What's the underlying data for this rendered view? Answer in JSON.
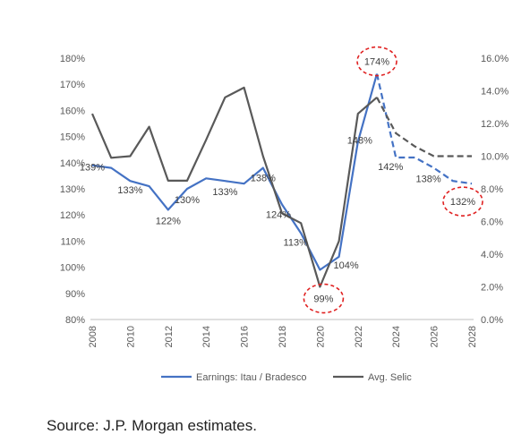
{
  "chart_data": {
    "type": "line",
    "title": "",
    "xlabel": "",
    "ylabel": "",
    "x": [
      2008,
      2009,
      2010,
      2011,
      2012,
      2013,
      2014,
      2015,
      2016,
      2017,
      2018,
      2019,
      2020,
      2021,
      2022,
      2023,
      2024,
      2025,
      2026,
      2027,
      2028
    ],
    "x_ticks": [
      "2008",
      "2010",
      "2012",
      "2014",
      "2016",
      "2018",
      "2020",
      "2022",
      "2024",
      "2026",
      "2028"
    ],
    "y_left": {
      "range": [
        80,
        180
      ],
      "ticks": [
        "80%",
        "90%",
        "100%",
        "110%",
        "120%",
        "130%",
        "140%",
        "150%",
        "160%",
        "170%",
        "180%"
      ]
    },
    "y_right": {
      "range": [
        0,
        16
      ],
      "ticks": [
        "0.0%",
        "2.0%",
        "4.0%",
        "6.0%",
        "8.0%",
        "10.0%",
        "12.0%",
        "14.0%",
        "16.0%"
      ]
    },
    "grid": false,
    "legend_position": "bottom",
    "forecast_from": 2023,
    "series": [
      {
        "name": "Earnings: Itau / Bradesco",
        "axis": "left",
        "color": "#4472c4",
        "values": [
          139,
          138,
          133,
          131,
          122,
          130,
          134,
          133,
          132,
          138,
          124,
          113,
          99,
          104,
          148,
          174,
          142,
          142,
          138,
          133,
          132
        ]
      },
      {
        "name": "Avg. Selic",
        "axis": "right",
        "color": "#595959",
        "values": [
          12.6,
          9.9,
          10.0,
          11.8,
          8.5,
          8.5,
          11.0,
          13.6,
          14.2,
          10.0,
          6.5,
          5.9,
          2.0,
          4.8,
          12.6,
          13.6,
          11.4,
          10.6,
          10.0,
          10.0,
          10.0
        ]
      }
    ],
    "data_labels": [
      {
        "x": 2008,
        "text": "139%"
      },
      {
        "x": 2010,
        "text": "133%"
      },
      {
        "x": 2012,
        "text": "122%"
      },
      {
        "x": 2013,
        "text": "130%"
      },
      {
        "x": 2015,
        "text": "133%"
      },
      {
        "x": 2017,
        "text": "138%"
      },
      {
        "x": 2018,
        "text": "124%"
      },
      {
        "x": 2019,
        "text": "113%"
      },
      {
        "x": 2020,
        "text": "99%",
        "circled": true
      },
      {
        "x": 2021,
        "text": "104%"
      },
      {
        "x": 2022,
        "text": "148%"
      },
      {
        "x": 2023,
        "text": "174%",
        "circled": true
      },
      {
        "x": 2024,
        "text": "142%"
      },
      {
        "x": 2026,
        "text": "138%"
      },
      {
        "x": 2028,
        "text": "132%",
        "circled": true
      }
    ],
    "highlight_color": "#e02020"
  },
  "source": "Source: J.P. Morgan estimates."
}
